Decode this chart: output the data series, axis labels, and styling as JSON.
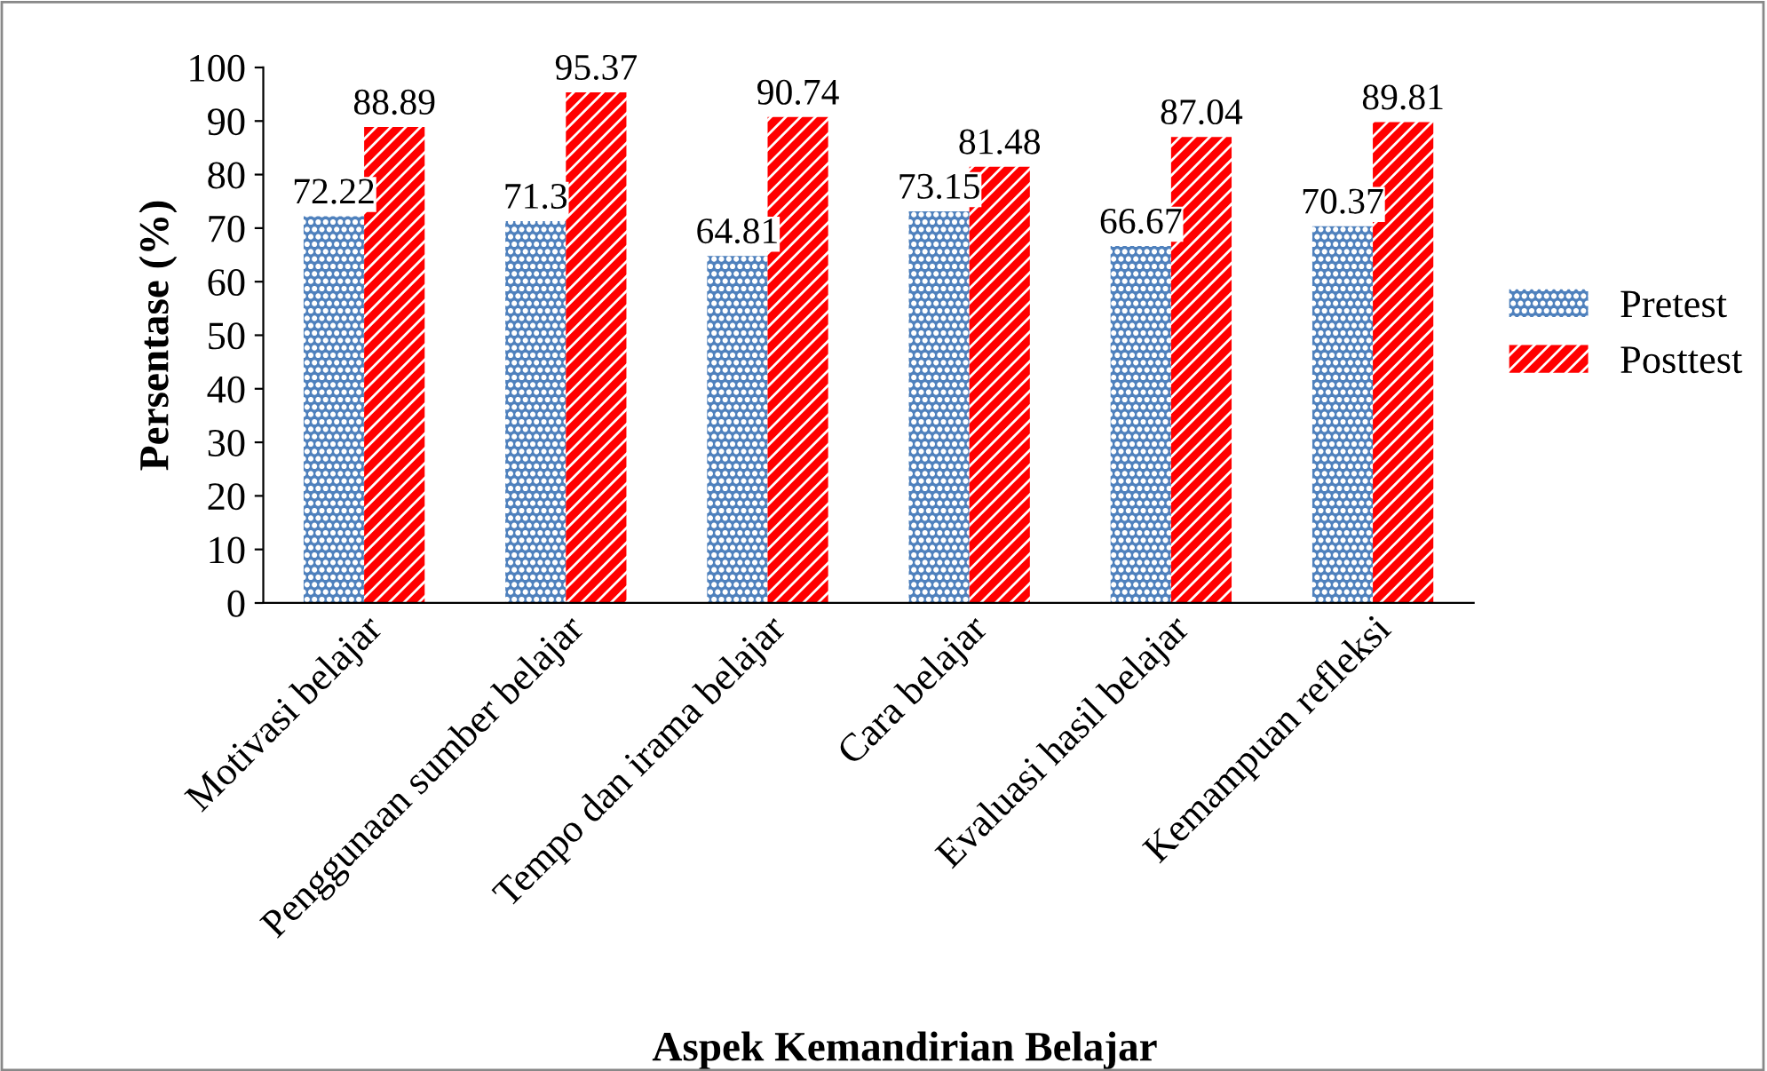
{
  "chart_data": {
    "type": "bar",
    "xlabel": "Aspek Kemandirian Belajar",
    "ylabel": "Persentase (%)",
    "categories": [
      "Motivasi belajar",
      "Penggunaan sumber belajar",
      "Tempo dan irama belajar",
      "Cara belajar",
      "Evaluasi hasil belajar",
      "Kemampuan refleksi"
    ],
    "series": [
      {
        "name": "Pretest",
        "color": "#4f81bd",
        "values": [
          72.22,
          71.3,
          64.81,
          73.15,
          66.67,
          70.37
        ]
      },
      {
        "name": "Posttest",
        "color": "#ff0000",
        "values": [
          88.89,
          95.37,
          90.74,
          81.48,
          87.04,
          89.81
        ]
      }
    ],
    "ylim": [
      0,
      100
    ],
    "yticks": [
      0,
      10,
      20,
      30,
      40,
      50,
      60,
      70,
      80,
      90,
      100
    ],
    "data_labels": true,
    "legend": "right",
    "grid": false
  }
}
